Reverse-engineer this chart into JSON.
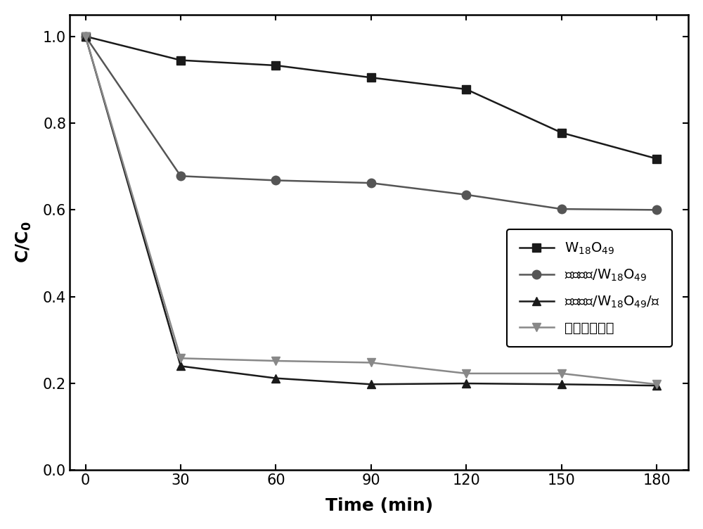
{
  "time": [
    0,
    30,
    60,
    90,
    120,
    150,
    180
  ],
  "W18O49_values": [
    1.0,
    0.945,
    0.933,
    0.905,
    0.878,
    0.778,
    0.718
  ],
  "CQD_W18O49_values": [
    1.0,
    0.678,
    0.668,
    0.662,
    0.635,
    0.602,
    0.6
  ],
  "CQD_W18O49_C_values": [
    1.0,
    0.24,
    0.212,
    0.198,
    0.2,
    0.198,
    0.195
  ],
  "porous_carbon_values": [
    1.0,
    0.258,
    0.252,
    0.248,
    0.223,
    0.223,
    0.198
  ],
  "color_dark": "#1a1a1a",
  "color_mid": "#555555",
  "color_light": "#888888",
  "xlabel": "Time (min)",
  "ylabel": "C/C",
  "xlim": [
    -5,
    190
  ],
  "ylim": [
    0.0,
    1.05
  ],
  "xticks": [
    0,
    30,
    60,
    90,
    120,
    150,
    180
  ],
  "yticks": [
    0.0,
    0.2,
    0.4,
    0.6,
    0.8,
    1.0
  ],
  "background_color": "#ffffff",
  "figure_width": 10.0,
  "figure_height": 7.52,
  "markersize": 9,
  "linewidth": 1.8
}
